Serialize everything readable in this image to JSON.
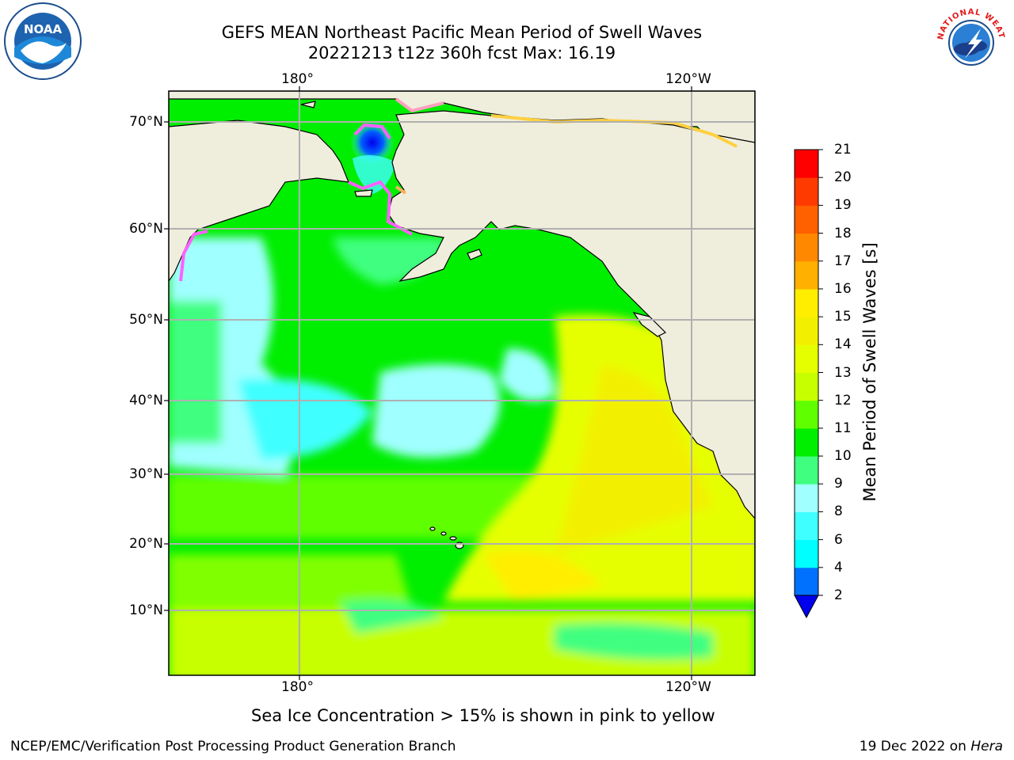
{
  "title": {
    "line1": "GEFS MEAN Northeast Pacific Mean Period of Swell Waves",
    "line2": "20221213 t12z 360h fcst   Max: 16.19"
  },
  "logos": {
    "left": "noaa-logo",
    "left_text": "NOAA",
    "right": "nws-logo",
    "right_text": "NATIONAL WEATHER SERVICE"
  },
  "axes": {
    "lon_top": [
      "180°",
      "120°W"
    ],
    "lon_bottom": [
      "180°",
      "120°W"
    ],
    "lat": [
      "70°N",
      "60°N",
      "50°N",
      "40°N",
      "30°N",
      "20°N",
      "10°N"
    ]
  },
  "colorbar": {
    "title": "Mean Period of Swell Waves [s]",
    "ticks": [
      "2",
      "4",
      "6",
      "8",
      "9",
      "10",
      "11",
      "12",
      "13",
      "14",
      "15",
      "16",
      "17",
      "18",
      "19",
      "20",
      "21"
    ],
    "colors": [
      "#0070ff",
      "#00ffff",
      "#40ffff",
      "#a0ffff",
      "#40ff80",
      "#00ee00",
      "#60ff00",
      "#c8ff00",
      "#e6ff00",
      "#f2f000",
      "#ffee00",
      "#ffb000",
      "#ff8800",
      "#ff6000",
      "#ff3a00",
      "#ff0000"
    ],
    "under_color": "#0000ee"
  },
  "map_colors": {
    "land": "#efeddc",
    "grid": "#b0b0b0",
    "ice": "#ff60ff"
  },
  "note": "Sea Ice Concentration > 15% is shown in pink to yellow",
  "footer": {
    "left": "NCEP/EMC/Verification Post Processing Product Generation Branch",
    "date": "19 Dec 2022 on ",
    "host": "Hera"
  }
}
